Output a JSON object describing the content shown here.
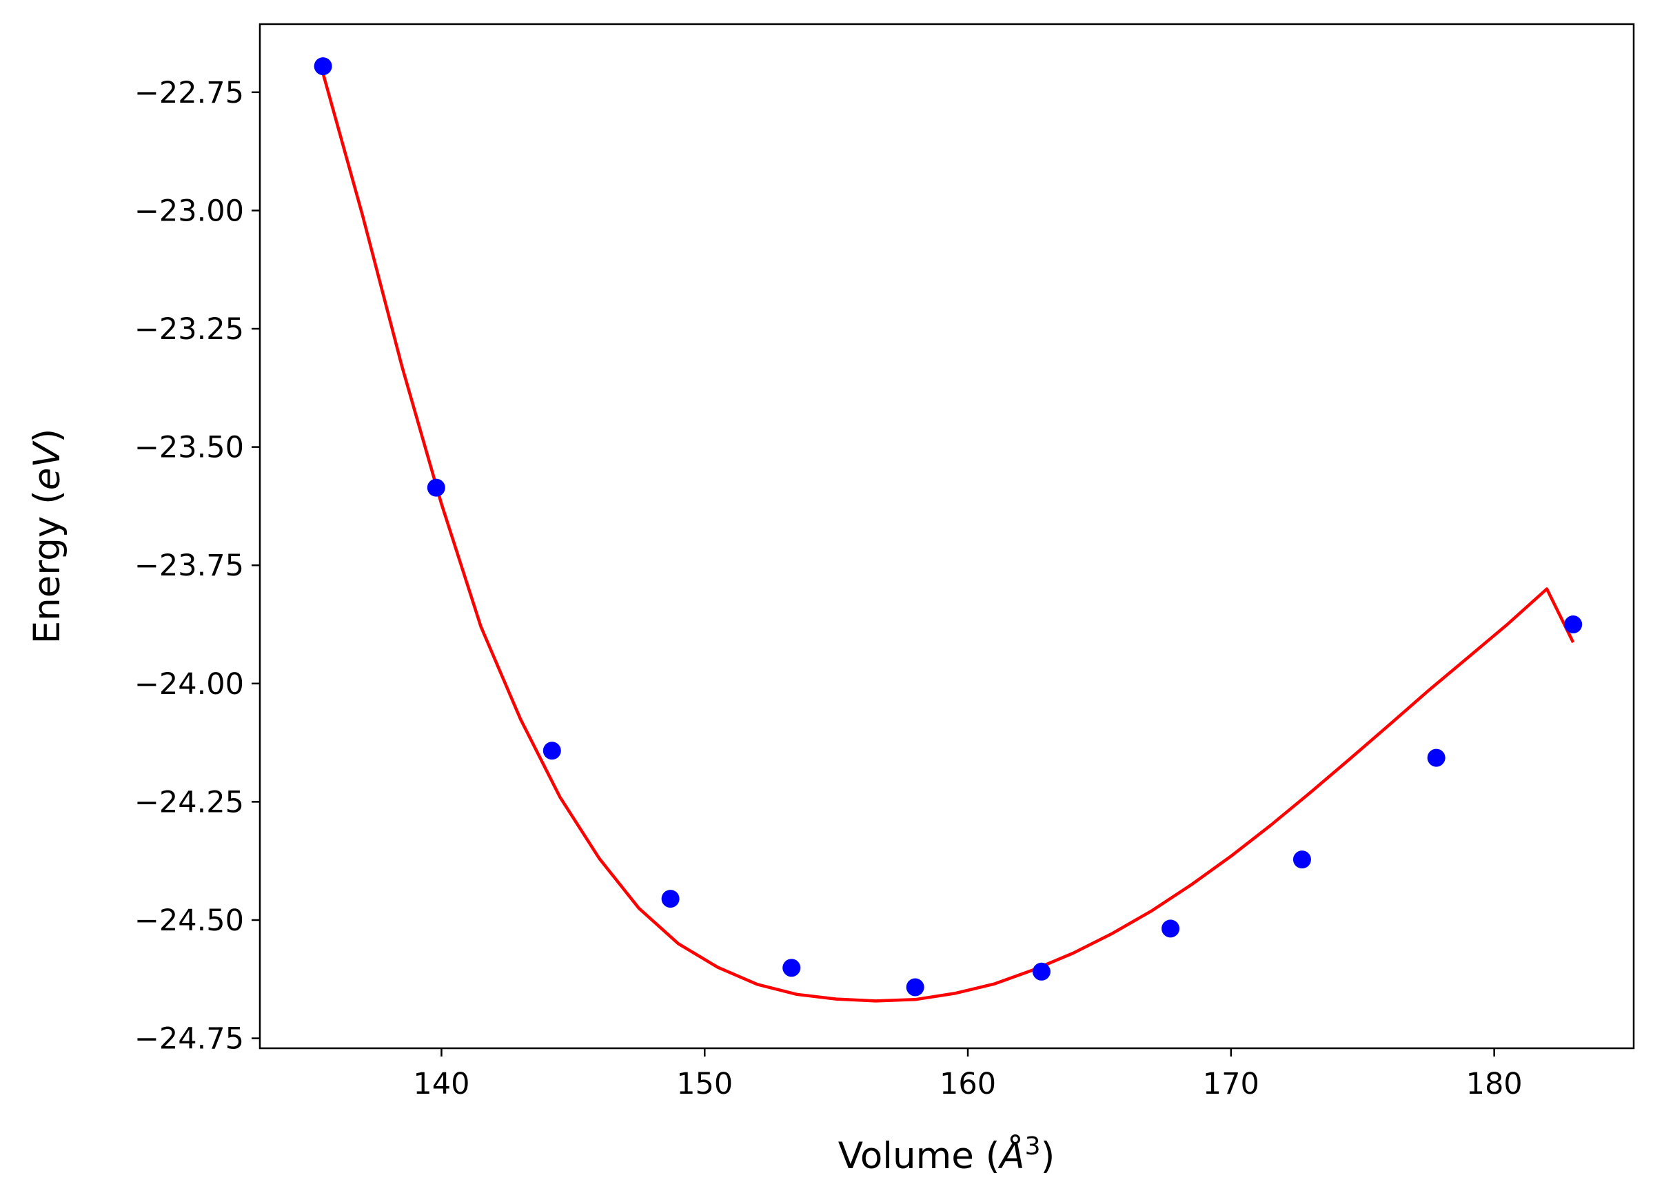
{
  "chart_data": {
    "type": "scatter",
    "title": "",
    "xlabel": "Volume (",
    "xlabel_symbol": "Å",
    "xlabel_exponent": "3",
    "xlabel_close": ")",
    "ylabel": "Energy (",
    "ylabel_unit": "eV",
    "ylabel_close": ")",
    "xlim": [
      133.1,
      185.3
    ],
    "ylim": [
      -24.771,
      -22.606
    ],
    "xticks": [
      140,
      150,
      160,
      170,
      180
    ],
    "xtick_labels": [
      "140",
      "150",
      "160",
      "170",
      "180"
    ],
    "yticks": [
      -22.75,
      -23.0,
      -23.25,
      -23.5,
      -23.75,
      -24.0,
      -24.25,
      -24.5,
      -24.75
    ],
    "ytick_labels": [
      "−22.75",
      "−23.00",
      "−23.25",
      "−23.50",
      "−23.75",
      "−24.00",
      "−24.25",
      "−24.50",
      "−24.75"
    ],
    "grid": false,
    "legend": "none",
    "series": [
      {
        "kind": "scatter",
        "color": "#0000ff",
        "x": [
          135.5,
          139.8,
          144.2,
          148.7,
          153.3,
          158.0,
          162.8,
          167.7,
          172.7,
          177.8,
          183.0
        ],
        "y": [
          -22.695,
          -23.586,
          -24.142,
          -24.455,
          -24.601,
          -24.642,
          -24.609,
          -24.518,
          -24.372,
          -24.157,
          -23.875
        ]
      },
      {
        "kind": "line",
        "color": "#ff0000",
        "x": [
          135.5,
          137.0,
          138.5,
          140.0,
          141.5,
          143.0,
          144.5,
          146.0,
          147.5,
          149.0,
          150.5,
          152.0,
          153.5,
          155.0,
          156.5,
          158.0,
          159.5,
          161.0,
          162.5,
          164.0,
          165.5,
          167.0,
          168.5,
          170.0,
          171.5,
          173.0,
          174.5,
          176.0,
          177.5,
          179.0,
          180.5,
          182.0,
          183.0
        ],
        "y": [
          -22.71,
          -23.01,
          -23.33,
          -23.62,
          -23.88,
          -24.075,
          -24.24,
          -24.37,
          -24.475,
          -24.55,
          -24.6,
          -24.636,
          -24.657,
          -24.667,
          -24.671,
          -24.668,
          -24.655,
          -24.635,
          -24.605,
          -24.57,
          -24.528,
          -24.48,
          -24.425,
          -24.365,
          -24.3,
          -24.231,
          -24.16,
          -24.088,
          -24.015,
          -23.945,
          -23.875,
          -23.8,
          -23.913
        ]
      }
    ]
  }
}
